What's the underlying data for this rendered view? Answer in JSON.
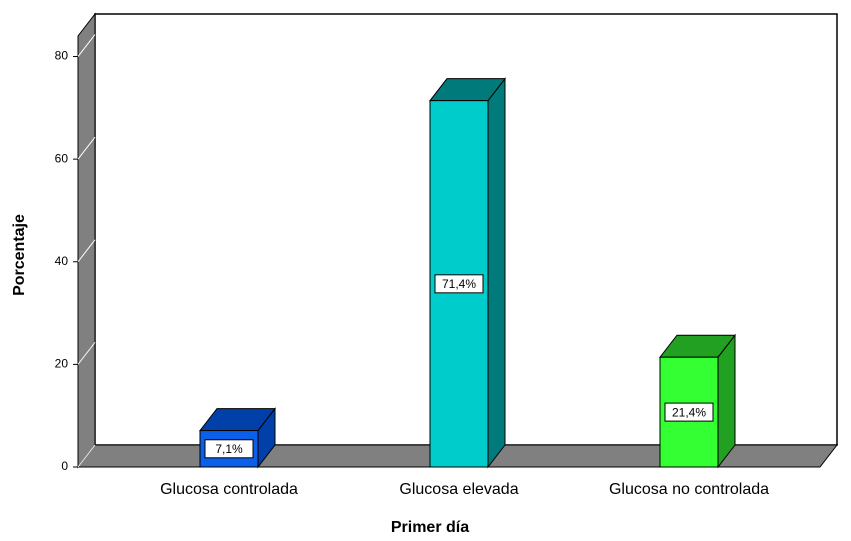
{
  "chart_data": {
    "type": "bar3d",
    "x_label": "Primer día",
    "y_label": "Porcentaje",
    "categories": [
      "Glucosa controlada",
      "Glucosa elevada",
      "Glucosa no controlada"
    ],
    "values": [
      7.1,
      71.4,
      21.4
    ],
    "value_labels": [
      "7,1%",
      "71,4%",
      "21,4%"
    ],
    "colors": [
      [
        "#0b5fe8",
        "#0040a8"
      ],
      [
        "#00cccc",
        "#007a7a"
      ],
      [
        "#33ff33",
        "#22a022"
      ]
    ],
    "ylim": [
      0,
      84
    ],
    "yticks": [
      0,
      20,
      40,
      60,
      80
    ],
    "grid": true
  }
}
